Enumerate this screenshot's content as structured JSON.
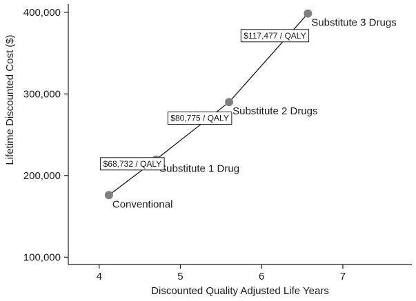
{
  "chart_data": {
    "type": "line",
    "xlabel": "Discounted Quality Adjusted Life Years",
    "ylabel": "Lifetime Discounted Cost ($)",
    "xlim": [
      3.62,
      7.85
    ],
    "ylim": [
      91000,
      410000
    ],
    "xticks": [
      {
        "value": 4,
        "label": "4"
      },
      {
        "value": 5,
        "label": "5"
      },
      {
        "value": 6,
        "label": "6"
      },
      {
        "value": 7,
        "label": "7"
      }
    ],
    "yticks": [
      {
        "value": 100000,
        "label": "100,000"
      },
      {
        "value": 200000,
        "label": "200,000"
      },
      {
        "value": 300000,
        "label": "300,000"
      },
      {
        "value": 400000,
        "label": "400,000"
      }
    ],
    "grid": false,
    "series": [
      {
        "points": [
          {
            "x": 4.12,
            "y": 176000,
            "label": "Conventional"
          },
          {
            "x": 4.7,
            "y": 219500,
            "label": "Substitute 1 Drug"
          },
          {
            "x": 5.6,
            "y": 290000,
            "label": "Substitute 2 Drugs"
          },
          {
            "x": 6.57,
            "y": 398500,
            "label": "Substitute 3 Drugs"
          }
        ]
      }
    ],
    "annotations": [
      {
        "text": "$68,732 / QALY",
        "x": 4.05,
        "y": 211000
      },
      {
        "text": "$80,775 / QALY",
        "x": 4.88,
        "y": 267000
      },
      {
        "text": "$117,477 / QALY",
        "x": 5.78,
        "y": 368000
      }
    ],
    "colors": {
      "marker": "#7f7f7f",
      "line": "#1a1a1a",
      "axis": "#1a1a1a"
    }
  }
}
